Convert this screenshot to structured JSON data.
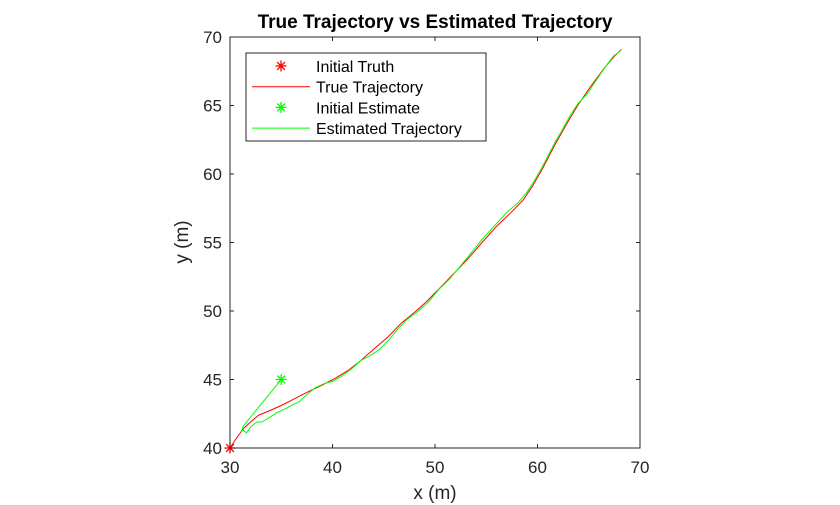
{
  "chart_data": {
    "type": "line",
    "title": "True Trajectory vs Estimated Trajectory",
    "xlabel": "x (m)",
    "ylabel": "y (m)",
    "xlim": [
      30,
      70
    ],
    "ylim": [
      40,
      70
    ],
    "xticks": [
      30,
      40,
      50,
      60,
      70
    ],
    "yticks": [
      40,
      45,
      50,
      55,
      60,
      65,
      70
    ],
    "xtick_labels": [
      "30",
      "40",
      "50",
      "60",
      "70"
    ],
    "ytick_labels": [
      "40",
      "45",
      "50",
      "55",
      "60",
      "65",
      "70"
    ],
    "grid": false,
    "legend_position": "top-left",
    "series": [
      {
        "name": "Initial Truth",
        "kind": "marker",
        "marker": "asterisk",
        "color": "#ff0000",
        "points": [
          [
            30.0,
            40.0
          ]
        ]
      },
      {
        "name": "True Trajectory",
        "kind": "line",
        "color": "#ff0000",
        "points": [
          [
            30.0,
            40.0
          ],
          [
            30.7,
            40.8
          ],
          [
            31.3,
            41.4
          ],
          [
            32.0,
            41.9
          ],
          [
            32.8,
            42.4
          ],
          [
            33.8,
            42.7
          ],
          [
            35.0,
            43.1
          ],
          [
            36.3,
            43.6
          ],
          [
            37.6,
            44.1
          ],
          [
            39.0,
            44.6
          ],
          [
            40.3,
            45.1
          ],
          [
            41.6,
            45.7
          ],
          [
            42.8,
            46.4
          ],
          [
            44.0,
            47.2
          ],
          [
            45.4,
            48.1
          ],
          [
            46.7,
            49.1
          ],
          [
            48.0,
            49.9
          ],
          [
            49.2,
            50.7
          ],
          [
            50.5,
            51.7
          ],
          [
            51.8,
            52.7
          ],
          [
            53.2,
            53.8
          ],
          [
            54.6,
            55.0
          ],
          [
            55.9,
            56.1
          ],
          [
            57.3,
            57.1
          ],
          [
            58.6,
            58.1
          ],
          [
            59.5,
            59.1
          ],
          [
            60.5,
            60.4
          ],
          [
            61.6,
            62.0
          ],
          [
            62.8,
            63.6
          ],
          [
            64.0,
            65.1
          ],
          [
            65.3,
            66.5
          ],
          [
            66.6,
            67.8
          ],
          [
            67.5,
            68.6
          ],
          [
            68.2,
            69.1
          ]
        ]
      },
      {
        "name": "Initial Estimate",
        "kind": "marker",
        "marker": "asterisk",
        "color": "#00ff00",
        "points": [
          [
            35.0,
            45.0
          ]
        ]
      },
      {
        "name": "Estimated Trajectory",
        "kind": "line",
        "color": "#00ff00",
        "points": [
          [
            35.0,
            45.0
          ],
          [
            31.3,
            41.6
          ],
          [
            31.1,
            41.2
          ],
          [
            31.3,
            41.3
          ],
          [
            31.6,
            41.1
          ],
          [
            32.1,
            41.6
          ],
          [
            32.6,
            41.9
          ],
          [
            33.1,
            41.9
          ],
          [
            33.8,
            42.2
          ],
          [
            34.6,
            42.6
          ],
          [
            35.5,
            42.9
          ],
          [
            36.2,
            43.2
          ],
          [
            36.8,
            43.4
          ],
          [
            37.5,
            43.9
          ],
          [
            38.3,
            44.4
          ],
          [
            39.2,
            44.7
          ],
          [
            40.1,
            44.9
          ],
          [
            41.0,
            45.3
          ],
          [
            41.9,
            45.8
          ],
          [
            42.8,
            46.4
          ],
          [
            43.6,
            46.7
          ],
          [
            44.6,
            47.2
          ],
          [
            45.5,
            47.9
          ],
          [
            46.4,
            48.7
          ],
          [
            47.3,
            49.4
          ],
          [
            48.2,
            49.9
          ],
          [
            49.3,
            50.6
          ],
          [
            50.4,
            51.6
          ],
          [
            51.5,
            52.4
          ],
          [
            52.6,
            53.4
          ],
          [
            53.7,
            54.4
          ],
          [
            54.8,
            55.4
          ],
          [
            55.9,
            56.3
          ],
          [
            57.0,
            57.2
          ],
          [
            58.1,
            57.9
          ],
          [
            58.9,
            58.6
          ],
          [
            59.6,
            59.4
          ],
          [
            60.3,
            60.3
          ],
          [
            61.0,
            61.3
          ],
          [
            61.7,
            62.3
          ],
          [
            62.4,
            63.2
          ],
          [
            63.2,
            64.3
          ],
          [
            64.0,
            65.2
          ],
          [
            64.8,
            65.8
          ],
          [
            65.7,
            66.8
          ],
          [
            66.6,
            67.8
          ],
          [
            67.4,
            68.6
          ],
          [
            68.1,
            69.0
          ]
        ]
      }
    ]
  }
}
